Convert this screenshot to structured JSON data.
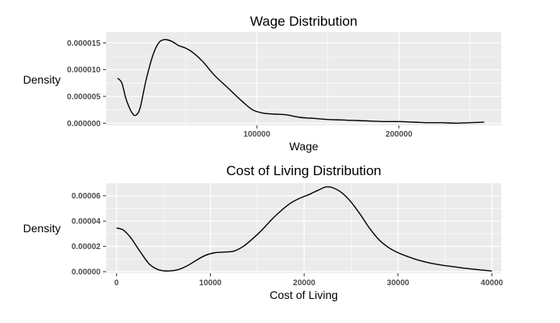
{
  "chart_data": [
    {
      "type": "line",
      "title": "Wage Distribution",
      "xlabel": "Wage",
      "ylabel": "Density",
      "xlim": [
        -6000,
        272000
      ],
      "ylim": [
        -4e-07,
        1.7e-05
      ],
      "x_ticks": [
        {
          "value": 100000,
          "label": "100000"
        },
        {
          "value": 200000,
          "label": "200000"
        }
      ],
      "y_ticks": [
        {
          "value": 0,
          "label": "0.000000"
        },
        {
          "value": 5e-06,
          "label": "0.000005"
        },
        {
          "value": 1e-05,
          "label": "0.000010"
        },
        {
          "value": 1.5e-05,
          "label": "0.000015"
        }
      ],
      "grid": true,
      "background": "#ebebeb",
      "line_color": "#000000",
      "series": [
        {
          "x": [
            2000,
            5000,
            8000,
            12000,
            15000,
            18000,
            22000,
            27000,
            31000,
            35000,
            40000,
            45000,
            50000,
            55000,
            62000,
            70000,
            80000,
            90000,
            97000,
            104000,
            112000,
            120000,
            130000,
            140000,
            150000,
            160000,
            170000,
            180000,
            190000,
            200000,
            210000,
            220000,
            230000,
            240000,
            250000,
            260000
          ],
          "y": [
            8.4e-06,
            7.5e-06,
            4.5e-06,
            2e-06,
            1.5e-06,
            3e-06,
            8e-06,
            1.28e-05,
            1.5e-05,
            1.56e-05,
            1.53e-05,
            1.45e-05,
            1.4e-05,
            1.32e-05,
            1.15e-05,
            9e-06,
            6.5e-06,
            4e-06,
            2.5e-06,
            1.9e-06,
            1.7e-06,
            1.6e-06,
            1.1e-06,
            9e-07,
            7e-07,
            6e-07,
            5e-07,
            4e-07,
            3e-07,
            3e-07,
            2e-07,
            1e-07,
            1e-07,
            0.0,
            1e-07,
            2e-07
          ]
        }
      ]
    },
    {
      "type": "line",
      "title": "Cost of Living Distribution",
      "xlabel": "Cost of Living",
      "ylabel": "Density",
      "xlim": [
        -1100,
        41000
      ],
      "ylim": [
        -1.2e-06,
        7e-05
      ],
      "x_ticks": [
        {
          "value": 0,
          "label": "0"
        },
        {
          "value": 10000,
          "label": "10000"
        },
        {
          "value": 20000,
          "label": "20000"
        },
        {
          "value": 30000,
          "label": "30000"
        },
        {
          "value": 40000,
          "label": "40000"
        }
      ],
      "y_ticks": [
        {
          "value": 0,
          "label": "0.00000"
        },
        {
          "value": 2e-05,
          "label": "0.00002"
        },
        {
          "value": 4e-05,
          "label": "0.00004"
        },
        {
          "value": 6e-05,
          "label": "0.00006"
        }
      ],
      "grid": true,
      "background": "#ebebeb",
      "line_color": "#000000",
      "series": [
        {
          "x": [
            0,
            700,
            1500,
            2500,
            3500,
            4500,
            5500,
            6500,
            7500,
            8500,
            9500,
            10500,
            11500,
            12500,
            13500,
            14500,
            15500,
            16500,
            17500,
            18500,
            19500,
            20500,
            21500,
            22300,
            23000,
            24000,
            25000,
            26000,
            27000,
            28000,
            29000,
            30000,
            31000,
            32000,
            33000,
            34000,
            35000,
            36000,
            37000,
            38000,
            39000,
            40000
          ],
          "y": [
            3.45e-05,
            3.3e-05,
            2.7e-05,
            1.6e-05,
            6e-06,
            1.5e-06,
            5e-07,
            1.5e-06,
            4.5e-06,
            9e-06,
            1.3e-05,
            1.5e-05,
            1.55e-05,
            1.62e-05,
            2e-05,
            2.6e-05,
            3.3e-05,
            4.1e-05,
            4.8e-05,
            5.4e-05,
            5.8e-05,
            6.1e-05,
            6.45e-05,
            6.7e-05,
            6.65e-05,
            6.25e-05,
            5.5e-05,
            4.5e-05,
            3.4e-05,
            2.5e-05,
            1.9e-05,
            1.5e-05,
            1.2e-05,
            9.5e-06,
            7.5e-06,
            6e-06,
            4.8e-06,
            3.8e-06,
            2.8e-06,
            2e-06,
            1.2e-06,
            5e-07
          ]
        }
      ]
    }
  ]
}
